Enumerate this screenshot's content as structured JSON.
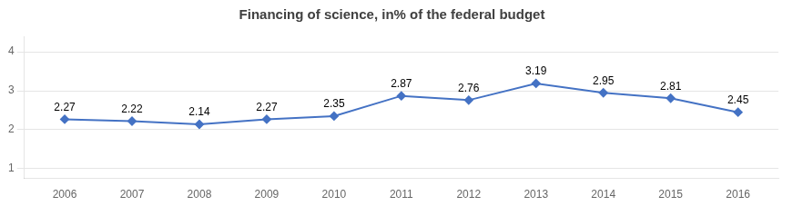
{
  "chart_data": {
    "type": "line",
    "title": "Financing of science, in% of the federal budget",
    "x": [
      2006,
      2007,
      2008,
      2009,
      2010,
      2011,
      2012,
      2013,
      2014,
      2015,
      2016
    ],
    "values": [
      2.27,
      2.22,
      2.14,
      2.27,
      2.35,
      2.87,
      2.76,
      3.19,
      2.95,
      2.81,
      2.45
    ],
    "color": "#4472C4",
    "marker": "diamond",
    "xlim": [
      2005.4,
      2016.6
    ],
    "xticks": [
      2006,
      2007,
      2008,
      2009,
      2010,
      2011,
      2012,
      2013,
      2014,
      2015,
      2016
    ],
    "ylim": [
      0.75,
      4.4
    ],
    "yticks": [
      1,
      2,
      3,
      4
    ],
    "grid": true,
    "data_labels": true
  }
}
